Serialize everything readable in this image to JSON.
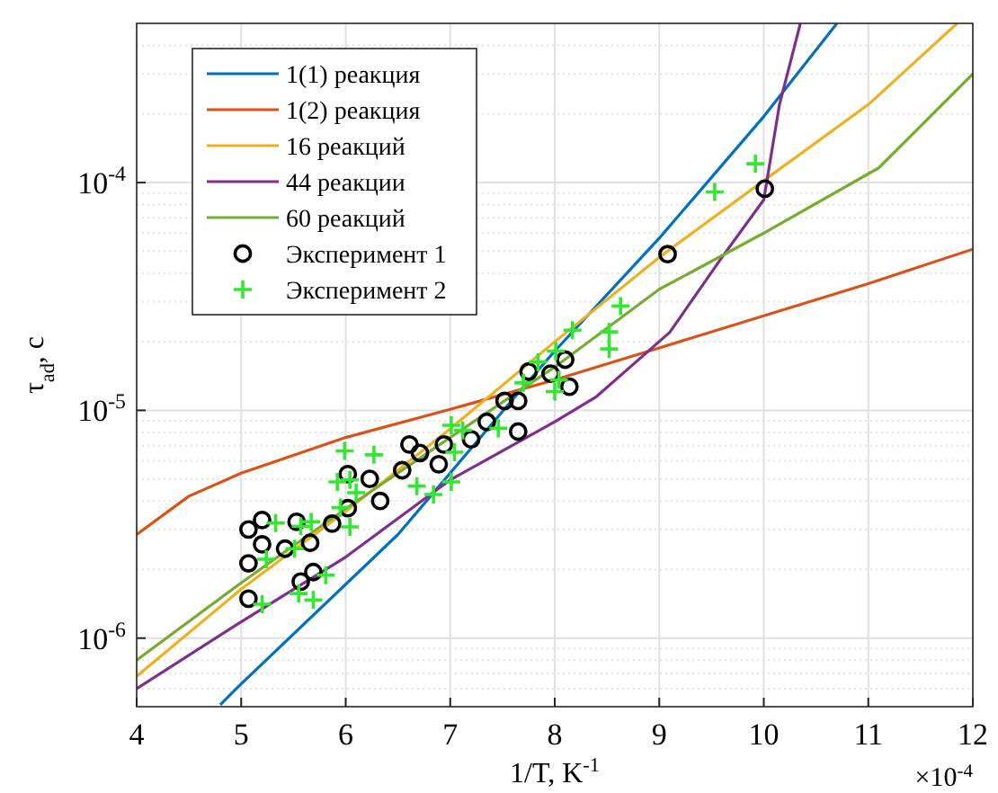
{
  "chart_data": {
    "type": "line",
    "xlabel": "1/T, K$^{-1}$",
    "ylabel": "τ$_{ad}$, с",
    "annotations": [
      "×10$^{-4}$"
    ],
    "log": "y",
    "grid": true,
    "legend": "top left",
    "xlim": [
      4,
      12
    ],
    "xticks": [
      4,
      5,
      6,
      7,
      8,
      9,
      10,
      11,
      12
    ],
    "ylim": [
      5e-07,
      0.0005
    ],
    "yticks": [
      {
        "value": 1e-06,
        "label": "10$^{-6}$"
      },
      {
        "value": 1e-05,
        "label": "10$^{-5}$"
      },
      {
        "value": 0.0001,
        "label": "10$^{-4}$"
      }
    ],
    "series": [
      {
        "name": "1(1) реакция",
        "color": "#0072bd",
        "x": [
          4.8,
          5,
          6.5,
          7.6,
          8,
          9,
          10,
          10.7
        ],
        "values": [
          5.1e-07,
          6.3e-07,
          2.85e-06,
          1.12e-05,
          1.82e-05,
          5.7e-05,
          0.000195,
          0.0005
        ]
      },
      {
        "name": "1(2) реакция",
        "color": "#d95319",
        "x": [
          4,
          4.5,
          5,
          6,
          7,
          8,
          9,
          10,
          11,
          12
        ],
        "values": [
          2.85e-06,
          4.2e-06,
          5.3e-06,
          7.6e-06,
          1.01e-05,
          1.36e-05,
          1.88e-05,
          2.6e-05,
          3.6e-05,
          5.1e-05
        ]
      },
      {
        "name": "16 реакций",
        "color": "#edb120",
        "x": [
          4,
          5,
          6,
          7,
          8,
          9,
          10,
          11,
          11.85
        ],
        "values": [
          6.8e-07,
          1.64e-06,
          3.6e-06,
          8.3e-06,
          2e-05,
          4.7e-05,
          0.000102,
          0.00022,
          0.0005
        ]
      },
      {
        "name": "44 реакции",
        "color": "#7e2f8e",
        "x": [
          4,
          5,
          6,
          7,
          8,
          8.4,
          9.1,
          9.6,
          10,
          10.15,
          10.35
        ],
        "values": [
          6e-07,
          1.18e-06,
          2.27e-06,
          4.95e-06,
          8.9e-06,
          1.15e-05,
          2.2e-05,
          4.7e-05,
          8.4e-05,
          0.00022,
          0.0005
        ]
      },
      {
        "name": "60 реакций",
        "color": "#77ac30",
        "x": [
          4,
          5,
          6,
          7,
          8,
          9,
          10,
          11.1,
          12
        ],
        "values": [
          8e-07,
          1.75e-06,
          3.7e-06,
          7.6e-06,
          1.55e-05,
          3.4e-05,
          6e-05,
          0.000116,
          0.0003
        ]
      },
      {
        "name": "Эксперимент 1",
        "type": "scatter",
        "marker": "circle",
        "color": "#000000",
        "x": [
          5.07,
          5.2,
          5.07,
          5.07,
          5.2,
          5.42,
          5.53,
          5.66,
          5.57,
          5.69,
          5.87,
          6.02,
          6.02,
          6.23,
          6.33,
          6.54,
          6.61,
          6.71,
          6.89,
          6.94,
          7.2,
          7.35,
          7.52,
          7.65,
          7.65,
          7.75,
          7.96,
          8.1,
          8.14,
          9.08,
          10.01
        ],
        "values": [
          3e-06,
          3.3e-06,
          2.13e-06,
          1.49e-06,
          2.58e-06,
          2.47e-06,
          3.24e-06,
          2.62e-06,
          1.77e-06,
          1.95e-06,
          3.18e-06,
          5.25e-06,
          3.72e-06,
          5e-06,
          4e-06,
          5.46e-06,
          7.08e-06,
          6.5e-06,
          5.8e-06,
          7.08e-06,
          7.46e-06,
          8.9e-06,
          1.1e-05,
          1.1e-05,
          8.07e-06,
          1.48e-05,
          1.45e-05,
          1.67e-05,
          1.27e-05,
          4.85e-05,
          9.4e-05
        ]
      },
      {
        "name": "Эксперимент 2",
        "type": "scatter",
        "marker": "cross",
        "color": "#33e633",
        "x": [
          5.33,
          5.24,
          5.2,
          5.57,
          5.67,
          5.51,
          5.55,
          5.69,
          5.81,
          5.99,
          5.92,
          6.04,
          6.1,
          5.95,
          6.04,
          6.27,
          6.68,
          6.84,
          7.01,
          7.12,
          7.04,
          7.01,
          7.46,
          7.7,
          7.84,
          8.01,
          8.04,
          8,
          8.17,
          8.52,
          8.52,
          8.63,
          9.53,
          9.92
        ],
        "values": [
          3.2e-06,
          2.22e-06,
          1.41e-06,
          3.1e-06,
          3.24e-06,
          2.47e-06,
          1.57e-06,
          1.47e-06,
          1.89e-06,
          6.64e-06,
          4.85e-06,
          4.95e-06,
          4.35e-06,
          3.74e-06,
          3.08e-06,
          6.38e-06,
          4.65e-06,
          4.27e-06,
          8.6e-06,
          8.17e-06,
          6.55e-06,
          4.85e-06,
          8.34e-06,
          1.32e-05,
          1.63e-05,
          1.82e-05,
          1.36e-05,
          1.21e-05,
          2.25e-05,
          2.21e-05,
          1.86e-05,
          2.87e-05,
          9.1e-05,
          0.000121
        ]
      }
    ]
  }
}
